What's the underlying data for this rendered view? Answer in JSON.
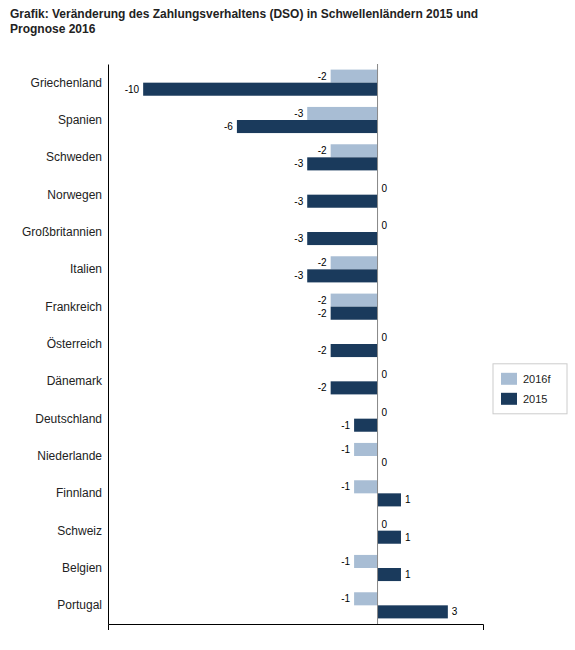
{
  "chart_data": {
    "type": "bar",
    "orientation": "horizontal",
    "title": "Grafik: Veränderung des Zahlungsverhaltens (DSO) in Schwellenländern 2015 und\nPrognose 2016",
    "categories": [
      "Griechenland",
      "Spanien",
      "Schweden",
      "Norwegen",
      "Großbritannien",
      "Italien",
      "Frankreich",
      "Österreich",
      "Dänemark",
      "Deutschland",
      "Niederlande",
      "Finnland",
      "Schweiz",
      "Belgien",
      "Portugal"
    ],
    "series": [
      {
        "name": "2016f",
        "color": "#a8bdd4",
        "values": [
          -2,
          -3,
          -2,
          0,
          0,
          -2,
          -2,
          0,
          0,
          0,
          -1,
          -1,
          0,
          -1,
          -1
        ]
      },
      {
        "name": "2015",
        "color": "#1a3a5c",
        "values": [
          -10,
          -6,
          -3,
          -3,
          -3,
          -3,
          -2,
          -2,
          -2,
          -1,
          0,
          1,
          1,
          1,
          3
        ]
      }
    ],
    "xlim": [
      -11.5,
      4.5
    ],
    "grid": false,
    "legend": "right",
    "data_labels": true,
    "tick_labels": "y"
  }
}
